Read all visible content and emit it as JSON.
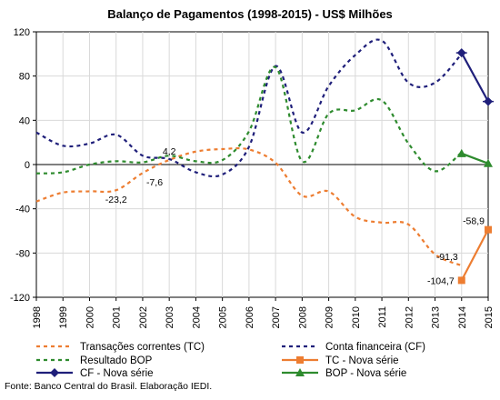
{
  "chart_data": {
    "type": "line",
    "title": "Balanço de Pagamentos (1998-2015) - US$ Milhões",
    "x": [
      "1998",
      "1999",
      "2000",
      "2001",
      "2002",
      "2003",
      "2004",
      "2005",
      "2006",
      "2007",
      "2008",
      "2009",
      "2010",
      "2011",
      "2012",
      "2013",
      "2014",
      "2015"
    ],
    "ylim": [
      -120,
      120
    ],
    "yticks": [
      -120,
      -80,
      -40,
      0,
      40,
      80,
      120
    ],
    "grid": true,
    "legend_position": "bottom",
    "series": [
      {
        "name": "Transações correntes (TC)",
        "color": "#ED7D31",
        "style": "dashed",
        "x": [
          "1998",
          "1999",
          "2000",
          "2001",
          "2002",
          "2003",
          "2004",
          "2005",
          "2006",
          "2007",
          "2008",
          "2009",
          "2010",
          "2011",
          "2012",
          "2013",
          "2014"
        ],
        "values": [
          -33.4,
          -25.3,
          -24.2,
          -23.2,
          -7.6,
          4.2,
          11.7,
          14.0,
          13.6,
          1.6,
          -28.2,
          -24.3,
          -47.3,
          -52.5,
          -54.2,
          -81.2,
          -91.3
        ]
      },
      {
        "name": "Conta financeira (CF)",
        "color": "#1F1F7A",
        "style": "dashed",
        "x": [
          "1998",
          "1999",
          "2000",
          "2001",
          "2002",
          "2003",
          "2004",
          "2005",
          "2006",
          "2007",
          "2008",
          "2009",
          "2010",
          "2011",
          "2012",
          "2013",
          "2014"
        ],
        "values": [
          29,
          17,
          19,
          27,
          8,
          5,
          -7,
          -9,
          16,
          89,
          29,
          71,
          99,
          112,
          74,
          74,
          100
        ]
      },
      {
        "name": "Resultado BOP",
        "color": "#2E8B2E",
        "style": "dashed",
        "x": [
          "1998",
          "1999",
          "2000",
          "2001",
          "2002",
          "2003",
          "2004",
          "2005",
          "2006",
          "2007",
          "2008",
          "2009",
          "2010",
          "2011",
          "2012",
          "2013",
          "2014"
        ],
        "values": [
          -8,
          -7,
          0,
          3,
          2,
          8,
          3,
          4,
          30,
          88,
          3,
          46,
          49,
          58,
          19,
          -6,
          11
        ]
      },
      {
        "name": "TC - Nova série",
        "color": "#ED7D31",
        "style": "solid",
        "marker": "square",
        "x": [
          "2014",
          "2015"
        ],
        "values": [
          -104.7,
          -58.9
        ]
      },
      {
        "name": "CF - Nova série",
        "color": "#1F1F7A",
        "style": "solid",
        "marker": "diamond",
        "x": [
          "2014",
          "2015"
        ],
        "values": [
          101,
          57
        ]
      },
      {
        "name": "BOP - Nova série",
        "color": "#2E8B2E",
        "style": "solid",
        "marker": "triangle",
        "x": [
          "2014",
          "2015"
        ],
        "values": [
          10,
          1
        ]
      }
    ],
    "annotations": [
      {
        "text": "4,2",
        "x": "2003",
        "y": 4.2,
        "anchor": "above"
      },
      {
        "text": "-7,6",
        "x": "2002",
        "y": -7.6,
        "anchor": "below-right"
      },
      {
        "text": "-23,2",
        "x": "2001",
        "y": -23.2,
        "anchor": "below"
      },
      {
        "text": "-91,3",
        "x": "2014",
        "y": -91.3,
        "anchor": "above-left"
      },
      {
        "text": "-104,7",
        "x": "2014",
        "y": -104.7,
        "anchor": "left"
      },
      {
        "text": "-58,9",
        "x": "2015",
        "y": -58.9,
        "anchor": "above-left"
      }
    ],
    "source": "Fonte: Banco Central do Brasil. Elaboração IEDI."
  }
}
